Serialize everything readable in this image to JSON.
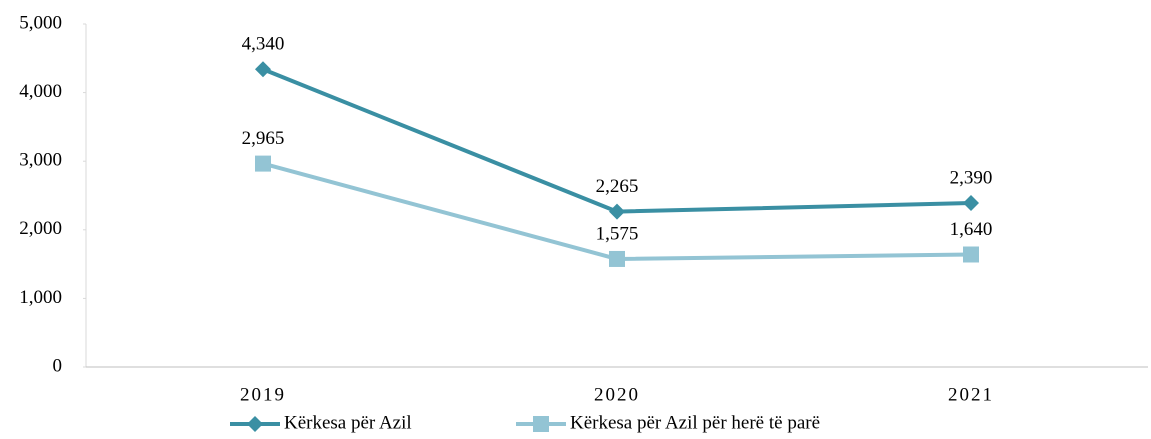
{
  "chart_data": {
    "type": "line",
    "categories": [
      "2019",
      "2020",
      "2021"
    ],
    "series": [
      {
        "name": "Kërkesa për Azil",
        "color": "#3a8fa3",
        "marker": "diamond",
        "values": [
          4340,
          2265,
          2390
        ],
        "value_labels": [
          "4,340",
          "2,265",
          "2,390"
        ]
      },
      {
        "name": "Kërkesa për Azil për herë të parë",
        "color": "#93c4d4",
        "marker": "square",
        "values": [
          2965,
          1575,
          1640
        ],
        "value_labels": [
          "2,965",
          "1,575",
          "1,640"
        ]
      }
    ],
    "ylim": [
      0,
      5000
    ],
    "yticks": [
      0,
      {
        "value": 1000,
        "label": "1,000"
      },
      {
        "value": 2000,
        "label": "2,000"
      },
      {
        "value": 3000,
        "label": "3,000"
      },
      {
        "value": 4000,
        "label": "4,000"
      },
      {
        "value": 5000,
        "label": "5,000"
      }
    ],
    "grid": false,
    "legend": "bottom"
  }
}
